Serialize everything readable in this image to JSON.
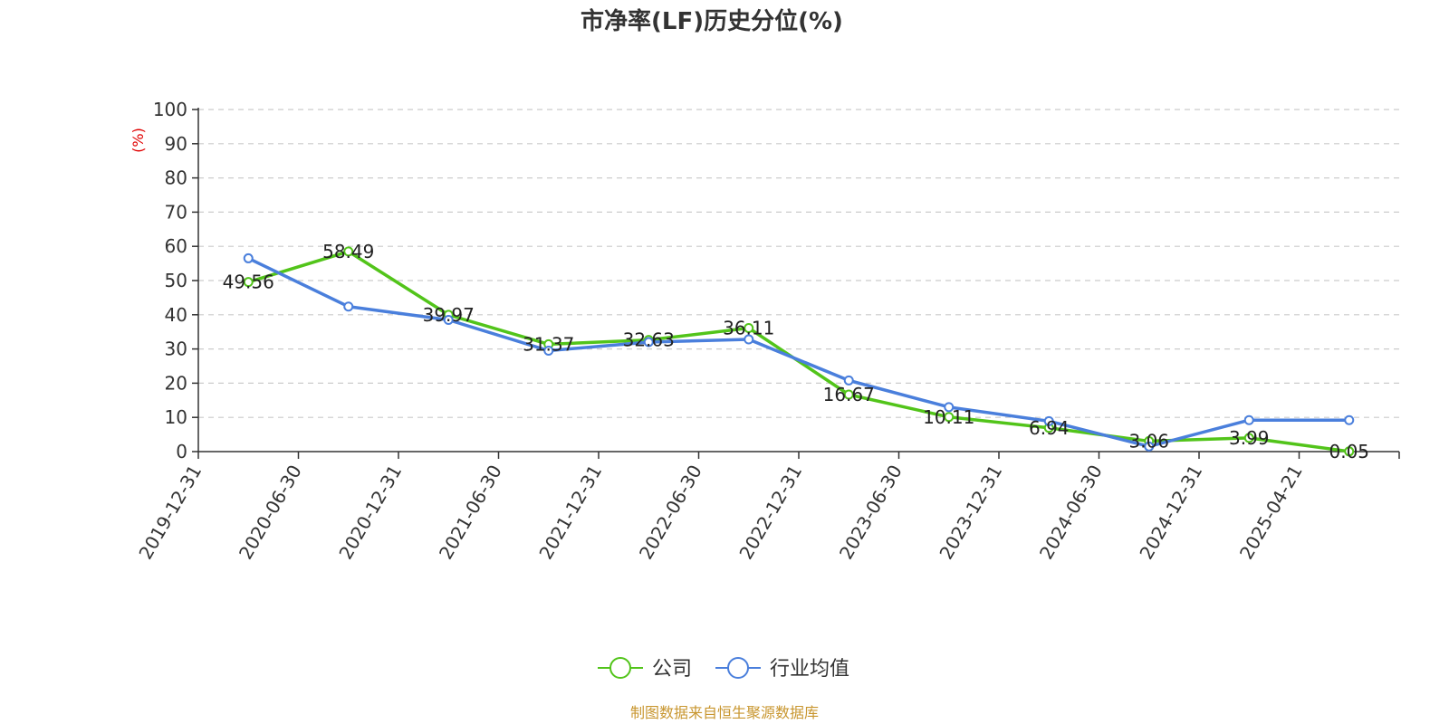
{
  "chart_data": {
    "type": "line",
    "title": "市净率(LF)历史分位(%)",
    "ylabel": "(%)",
    "xlabel": "",
    "categories": [
      "2019-12-31",
      "2020-06-30",
      "2020-12-31",
      "2021-06-30",
      "2021-12-31",
      "2022-06-30",
      "2022-12-31",
      "2023-06-30",
      "2023-12-31",
      "2024-06-30",
      "2024-12-31",
      "2025-04-21"
    ],
    "ylim": [
      0,
      100
    ],
    "yticks": [
      0,
      10,
      20,
      30,
      40,
      50,
      60,
      70,
      80,
      90,
      100
    ],
    "grid": true,
    "legend_position": "bottom",
    "series": [
      {
        "name": "公司",
        "color": "#52c41a",
        "values": [
          49.56,
          58.49,
          39.97,
          31.37,
          32.63,
          36.11,
          16.67,
          10.11,
          6.94,
          3.06,
          3.99,
          0.05
        ],
        "labels": [
          "49.56",
          "58.49",
          "39.97",
          "31.37",
          "32.63",
          "36.11",
          "16.67",
          "10.11",
          "6.94",
          "3.06",
          "3.99",
          "0.05"
        ]
      },
      {
        "name": "行业均值",
        "color": "#4a7fdc",
        "values": [
          56.5,
          42.4,
          38.5,
          29.5,
          32.0,
          32.8,
          20.8,
          13.0,
          8.9,
          1.5,
          9.2,
          9.2
        ]
      }
    ],
    "source": "制图数据来自恒生聚源数据库"
  }
}
